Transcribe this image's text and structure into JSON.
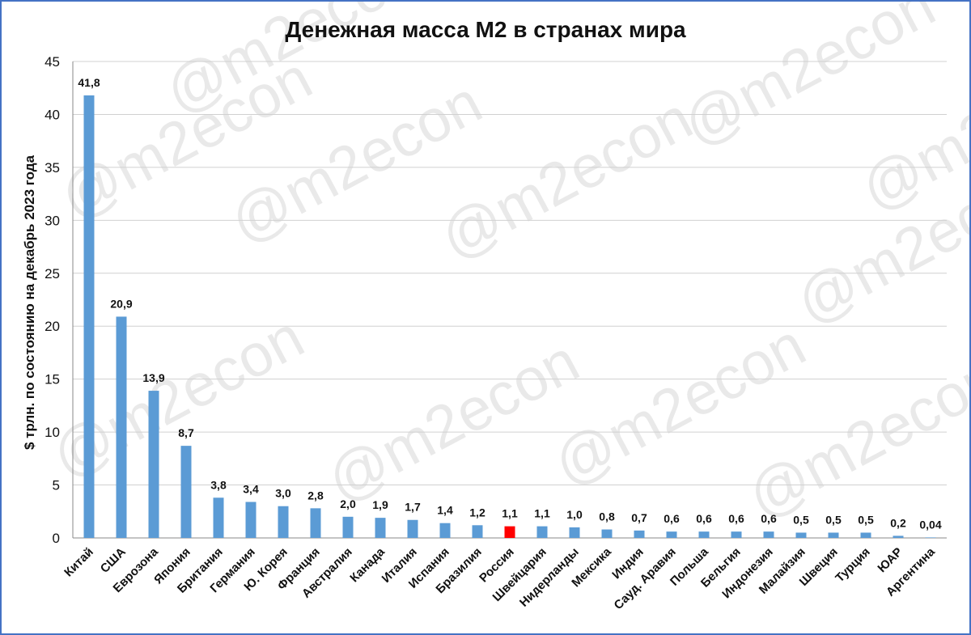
{
  "watermark": "@m2econ",
  "colors": {
    "bar": "#5b9bd5",
    "highlight": "#ff0000",
    "grid": "#d0d0d0",
    "axis": "#888888",
    "border": "#4472c4"
  },
  "chart_data": {
    "type": "bar",
    "title": "Денежная масса М2 в странах мира",
    "xlabel": "",
    "ylabel": "$ трлн. по состоянию на декабрь 2023 года",
    "ylim": [
      0,
      45
    ],
    "yticks": [
      0,
      5,
      10,
      15,
      20,
      25,
      30,
      35,
      40,
      45
    ],
    "grid": true,
    "highlight_category": "Россия",
    "categories": [
      "Китай",
      "США",
      "Еврозона",
      "Япония",
      "Британия",
      "Германия",
      "Ю. Корея",
      "Франция",
      "Австралия",
      "Канада",
      "Италия",
      "Испания",
      "Бразилия",
      "Россия",
      "Швейцария",
      "Нидерланды",
      "Мексика",
      "Индия",
      "Сауд. Аравия",
      "Польша",
      "Бельгия",
      "Индонезия",
      "Малайзия",
      "Швеция",
      "Турция",
      "ЮАР",
      "Аргентина"
    ],
    "values": [
      41.8,
      20.9,
      13.9,
      8.7,
      3.8,
      3.4,
      3.0,
      2.8,
      2.0,
      1.9,
      1.7,
      1.4,
      1.2,
      1.1,
      1.1,
      1.0,
      0.8,
      0.7,
      0.6,
      0.6,
      0.6,
      0.6,
      0.5,
      0.5,
      0.5,
      0.2,
      0.04
    ],
    "data_labels": [
      "41,8",
      "20,9",
      "13,9",
      "8,7",
      "3,8",
      "3,4",
      "3,0",
      "2,8",
      "2,0",
      "1,9",
      "1,7",
      "1,4",
      "1,2",
      "1,1",
      "1,1",
      "1,0",
      "0,8",
      "0,7",
      "0,6",
      "0,6",
      "0,6",
      "0,6",
      "0,5",
      "0,5",
      "0,5",
      "0,2",
      "0,04"
    ]
  }
}
